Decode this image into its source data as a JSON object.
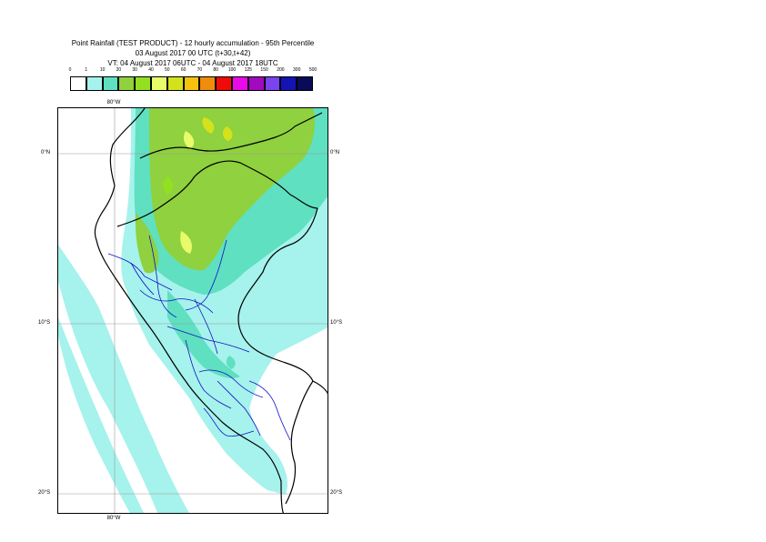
{
  "header": {
    "title_line1": "Point Rainfall (TEST PRODUCT) - 12 hourly accumulation - 95th Percentile",
    "title_line2": "03 August 2017 00 UTC (t+30,t+42)",
    "title_line3": "VT: 04 August 2017 06UTC - 04 August 2017 18UTC"
  },
  "legend": {
    "thresholds": [
      "0",
      "1",
      "10",
      "20",
      "30",
      "40",
      "50",
      "60",
      "70",
      "80",
      "100",
      "125",
      "150",
      "200",
      "300",
      "500"
    ],
    "colors": [
      "#ffffff",
      "#a6f2ec",
      "#5fe0c0",
      "#8fd13e",
      "#93e021",
      "#e8fb6a",
      "#d4e21c",
      "#f6c20c",
      "#f08c0a",
      "#f00a0a",
      "#e80ae8",
      "#a10abf",
      "#7b43ee",
      "#1414b4",
      "#0a0a5a"
    ]
  },
  "map": {
    "lat_labels": [
      "0°N",
      "10°S",
      "20°S"
    ],
    "lon_label": "80°W",
    "colors": {
      "rain_light": "#a6f2ec",
      "rain_moderate": "#5fe0c0",
      "rain_heavy": "#8fd13e",
      "rain_heavy2": "#93e021",
      "rain_peak": "#e8fb6a",
      "rain_peak2": "#d4e21c",
      "coast": "#000000",
      "admin_boundaries": "#1010c8",
      "graticule": "#9a9a9a"
    }
  }
}
